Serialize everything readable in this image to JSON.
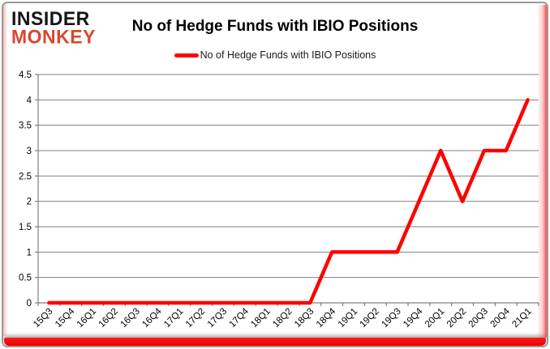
{
  "brand": {
    "name": "Insider Monkey logo",
    "line1": "INSIDER",
    "line2": "MONKEY",
    "line2_color": "#d9472e"
  },
  "title": "No of Hedge Funds with IBIO Positions",
  "legend": {
    "label": "No of Hedge Funds with IBIO Positions",
    "marker_color": "#ff0000"
  },
  "chart_data": {
    "type": "line",
    "title": "No of Hedge Funds with IBIO Positions",
    "categories": [
      "15Q3",
      "15Q4",
      "16Q1",
      "16Q2",
      "16Q3",
      "16Q4",
      "17Q1",
      "17Q2",
      "17Q3",
      "17Q4",
      "18Q1",
      "18Q2",
      "18Q3",
      "18Q4",
      "19Q1",
      "19Q2",
      "19Q3",
      "19Q4",
      "20Q1",
      "20Q2",
      "20Q3",
      "20Q4",
      "21Q1"
    ],
    "series": [
      {
        "name": "No of Hedge Funds with IBIO Positions",
        "color": "#ff0000",
        "values": [
          0,
          0,
          0,
          0,
          0,
          0,
          0,
          0,
          0,
          0,
          0,
          0,
          0,
          1,
          1,
          1,
          1,
          2,
          3,
          2,
          3,
          3,
          4
        ]
      }
    ],
    "xlabel": "",
    "ylabel": "",
    "ylim": [
      0,
      4.5
    ],
    "yticks": [
      0,
      0.5,
      1,
      1.5,
      2,
      2.5,
      3,
      3.5,
      4,
      4.5
    ],
    "grid": true,
    "grid_color": "#808080",
    "axis_color": "#808080",
    "tick_label_color": "#000000",
    "legend_position": "top"
  },
  "frame": {
    "bottom_bar_color": "#ee0000"
  }
}
